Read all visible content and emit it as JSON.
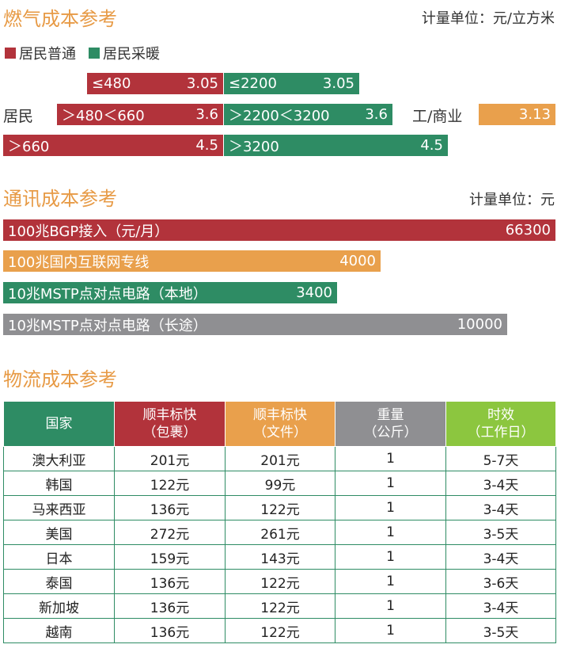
{
  "gas": {
    "title": "燃气成本参考",
    "unit": "计量单位：元/立方米",
    "legend": [
      "居民普通",
      "居民采暖"
    ],
    "colors": {
      "residential_normal": "#b2333b",
      "residential_heating": "#2e8c64",
      "commercial": "#e9a04c"
    },
    "resident_label": "居民",
    "commercial_label": "工/商业",
    "commercial_value": "3.13",
    "normal_tiers": [
      {
        "range": "≤480",
        "value": "3.05"
      },
      {
        "range": "＞480＜660",
        "value": "3.6"
      },
      {
        "range": "＞660",
        "value": "4.5"
      }
    ],
    "heating_tiers": [
      {
        "range": "≤2200",
        "value": "3.05"
      },
      {
        "range": "＞2200＜3200",
        "value": "3.6"
      },
      {
        "range": "＞3200",
        "value": "4.5"
      }
    ]
  },
  "telecom": {
    "title": "通讯成本参考",
    "unit": "计量单位：元",
    "bars": [
      {
        "label": "100兆BGP接入（元/月）",
        "value": "66300",
        "color": "#b2333b"
      },
      {
        "label": "100兆国内互联网专线",
        "value": "4000",
        "color": "#e9a04c"
      },
      {
        "label": "10兆MSTP点对点电路（本地）",
        "value": "3400",
        "color": "#2e8c64"
      },
      {
        "label": "10兆MSTP点对点电路（长途）",
        "value": "10000",
        "color": "#8f8f92"
      }
    ]
  },
  "logistics": {
    "title": "物流成本参考",
    "headers": [
      {
        "l1": "国家",
        "l2": ""
      },
      {
        "l1": "顺丰标快",
        "l2": "（包裹）"
      },
      {
        "l1": "顺丰标快",
        "l2": "（文件）"
      },
      {
        "l1": "重量",
        "l2": "（公斤）"
      },
      {
        "l1": "时效",
        "l2": "（工作日）"
      }
    ],
    "rows": [
      [
        "澳大利亚",
        "201元",
        "201元",
        "1",
        "5-7天"
      ],
      [
        "韩国",
        "122元",
        "99元",
        "1",
        "3-4天"
      ],
      [
        "马来西亚",
        "136元",
        "122元",
        "1",
        "3-4天"
      ],
      [
        "美国",
        "272元",
        "261元",
        "1",
        "3-5天"
      ],
      [
        "日本",
        "159元",
        "143元",
        "1",
        "3-4天"
      ],
      [
        "泰国",
        "136元",
        "122元",
        "1",
        "3-6天"
      ],
      [
        "新加坡",
        "136元",
        "122元",
        "1",
        "3-4天"
      ],
      [
        "越南",
        "136元",
        "122元",
        "1",
        "3-5天"
      ]
    ]
  }
}
